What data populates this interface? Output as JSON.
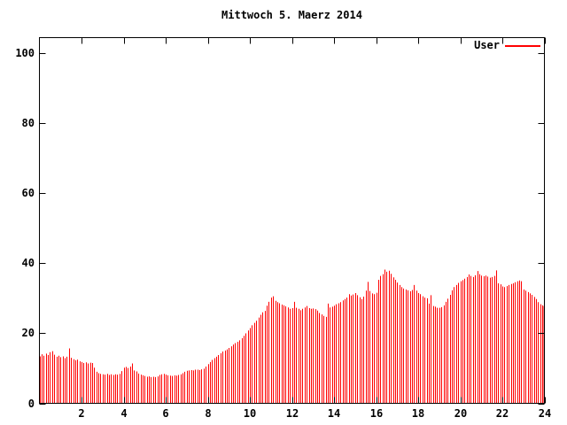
{
  "page": {
    "background": "#ffffff",
    "text_color": "#000000"
  },
  "chart_data": {
    "type": "bar",
    "style": "impulses",
    "title": "Mittwoch 5. Maerz 2014",
    "xlabel": "",
    "ylabel": "",
    "xlim": [
      0,
      24
    ],
    "ylim": [
      0,
      104.5
    ],
    "xticks": [
      2,
      4,
      6,
      8,
      10,
      12,
      14,
      16,
      18,
      20,
      22,
      24
    ],
    "yticks": [
      0,
      20,
      40,
      60,
      80,
      100
    ],
    "grid": false,
    "legend_position": "top-right-inside",
    "axis_color": "#000000",
    "background_color": "#ffffff",
    "series": [
      {
        "name": "User",
        "color": "#ff0000",
        "x_start": 0,
        "x_step": 0.1,
        "values": [
          13.4,
          14.0,
          13.6,
          14.2,
          13.8,
          14.6,
          14.9,
          13.9,
          13.3,
          13.6,
          13.2,
          13.4,
          12.9,
          13.3,
          15.7,
          13.0,
          12.6,
          12.3,
          12.5,
          12.0,
          11.8,
          11.5,
          11.7,
          11.4,
          11.6,
          11.5,
          10.2,
          9.0,
          8.6,
          8.4,
          8.3,
          8.2,
          8.4,
          8.1,
          8.3,
          8.1,
          8.3,
          8.2,
          8.4,
          9.2,
          10.2,
          10.4,
          10.1,
          10.5,
          11.4,
          9.4,
          9.1,
          8.5,
          8.2,
          8.0,
          7.8,
          7.6,
          7.7,
          7.5,
          7.6,
          7.5,
          7.7,
          8.1,
          8.3,
          8.4,
          8.2,
          8.0,
          7.9,
          7.8,
          8.0,
          7.9,
          8.1,
          8.3,
          8.6,
          9.0,
          9.3,
          9.4,
          9.5,
          9.4,
          9.6,
          9.6,
          9.5,
          9.7,
          9.9,
          10.5,
          11.2,
          11.8,
          12.4,
          12.9,
          13.3,
          13.8,
          14.3,
          14.8,
          15.1,
          15.4,
          15.8,
          16.3,
          16.8,
          17.2,
          17.6,
          18.0,
          18.6,
          19.3,
          20.0,
          20.8,
          21.5,
          22.3,
          23.0,
          23.6,
          24.5,
          25.3,
          26.0,
          26.4,
          27.9,
          29.0,
          30.2,
          30.6,
          29.3,
          28.9,
          28.6,
          28.2,
          28.0,
          27.7,
          27.4,
          27.0,
          27.2,
          29.0,
          27.3,
          27.0,
          26.6,
          27.0,
          27.4,
          27.8,
          27.2,
          27.0,
          27.1,
          26.9,
          26.5,
          25.8,
          25.4,
          25.0,
          24.7,
          28.5,
          27.4,
          27.6,
          27.9,
          28.3,
          28.6,
          28.9,
          29.4,
          29.8,
          30.2,
          31.2,
          30.8,
          31.1,
          31.5,
          30.9,
          30.3,
          29.8,
          30.5,
          32.2,
          34.7,
          32.1,
          31.4,
          31.2,
          31.6,
          35.3,
          36.4,
          36.9,
          38.2,
          37.6,
          37.9,
          37.0,
          36.0,
          35.3,
          34.5,
          33.8,
          33.2,
          32.8,
          32.5,
          32.3,
          32.0,
          32.4,
          33.8,
          32.2,
          31.5,
          31.2,
          30.6,
          30.2,
          30.0,
          28.5,
          30.9,
          27.8,
          27.6,
          27.3,
          27.3,
          27.5,
          28.0,
          29.0,
          29.9,
          31.0,
          32.3,
          33.2,
          33.8,
          34.4,
          34.9,
          35.2,
          35.6,
          36.1,
          36.8,
          36.4,
          36.1,
          36.6,
          37.8,
          36.9,
          36.5,
          36.3,
          36.5,
          36.2,
          35.9,
          36.1,
          36.4,
          38.0,
          34.3,
          34.0,
          33.4,
          33.2,
          33.5,
          33.8,
          34.1,
          34.3,
          34.6,
          34.9,
          35.1,
          34.9,
          32.5,
          32.2,
          31.8,
          31.4,
          31.0,
          30.4,
          29.8,
          28.9,
          28.3,
          28.0,
          27.8
        ]
      }
    ]
  }
}
